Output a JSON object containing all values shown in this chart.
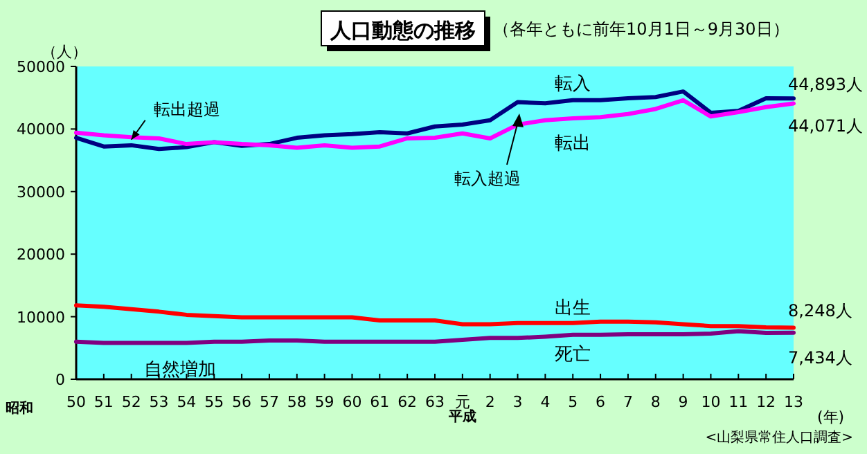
{
  "chart_data": {
    "type": "line",
    "title": "人口動態の推移",
    "subtitle": "（各年ともに前年10月1日～9月30日）",
    "ylabel": "（人）",
    "xlabel": "(年)",
    "categories": [
      "50",
      "51",
      "52",
      "53",
      "54",
      "55",
      "56",
      "57",
      "58",
      "59",
      "60",
      "61",
      "62",
      "63",
      "元",
      "2",
      "3",
      "4",
      "5",
      "6",
      "7",
      "8",
      "9",
      "10",
      "11",
      "12",
      "13"
    ],
    "series": [
      {
        "name": "転入",
        "color": "#000080",
        "values": [
          38600,
          37200,
          37400,
          36800,
          37100,
          37900,
          37300,
          37600,
          38600,
          39000,
          39200,
          39500,
          39300,
          40400,
          40700,
          41400,
          44300,
          44100,
          44600,
          44600,
          44900,
          45100,
          46000,
          42600,
          42900,
          44900,
          44893
        ],
        "value_labels": [
          null,
          null,
          null,
          null,
          null,
          null,
          null,
          null,
          null,
          null,
          null,
          null,
          null,
          null,
          null,
          null,
          null,
          null,
          null,
          null,
          null,
          null,
          null,
          null,
          null,
          null,
          "44,893人"
        ]
      },
      {
        "name": "転出",
        "color": "#ff00ff",
        "values": [
          39400,
          39000,
          38700,
          38500,
          37600,
          37900,
          37600,
          37400,
          37000,
          37400,
          37000,
          37200,
          38500,
          38600,
          39300,
          38500,
          40700,
          41400,
          41700,
          41900,
          42400,
          43200,
          44600,
          42000,
          42700,
          43500,
          44071
        ],
        "value_labels": [
          null,
          null,
          null,
          null,
          null,
          null,
          null,
          null,
          null,
          null,
          null,
          null,
          null,
          null,
          null,
          null,
          null,
          null,
          null,
          null,
          null,
          null,
          null,
          null,
          null,
          null,
          "44,071人"
        ]
      },
      {
        "name": "出生",
        "color": "#ff0000",
        "values": [
          11800,
          11600,
          11200,
          10800,
          10300,
          10100,
          9900,
          9900,
          9900,
          9900,
          9900,
          9400,
          9400,
          9400,
          8800,
          8800,
          9000,
          9000,
          9000,
          9200,
          9200,
          9100,
          8800,
          8500,
          8500,
          8300,
          8248
        ],
        "value_labels": [
          null,
          null,
          null,
          null,
          null,
          null,
          null,
          null,
          null,
          null,
          null,
          null,
          null,
          null,
          null,
          null,
          null,
          null,
          null,
          null,
          null,
          null,
          null,
          null,
          null,
          null,
          "8,248人"
        ]
      },
      {
        "name": "死亡",
        "color": "#800080",
        "values": [
          6000,
          5800,
          5800,
          5800,
          5800,
          6000,
          6000,
          6200,
          6200,
          6000,
          6000,
          6000,
          6000,
          6000,
          6300,
          6600,
          6600,
          6800,
          7100,
          7100,
          7200,
          7200,
          7200,
          7300,
          7700,
          7400,
          7434
        ],
        "value_labels": [
          null,
          null,
          null,
          null,
          null,
          null,
          null,
          null,
          null,
          null,
          null,
          null,
          null,
          null,
          null,
          null,
          null,
          null,
          null,
          null,
          null,
          null,
          null,
          null,
          null,
          null,
          "7,434人"
        ]
      }
    ],
    "ylim": [
      0,
      50000
    ],
    "yticks": [
      0,
      10000,
      20000,
      30000,
      40000,
      50000
    ],
    "grid": false,
    "marker": "none",
    "line_style": "solid",
    "annotations": [
      {
        "text": "転出超過",
        "x": "52",
        "y": 38300
      },
      "転入超過",
      "自然増加",
      "昭和",
      "平成",
      "<山梨県常住人口調査>"
    ]
  }
}
